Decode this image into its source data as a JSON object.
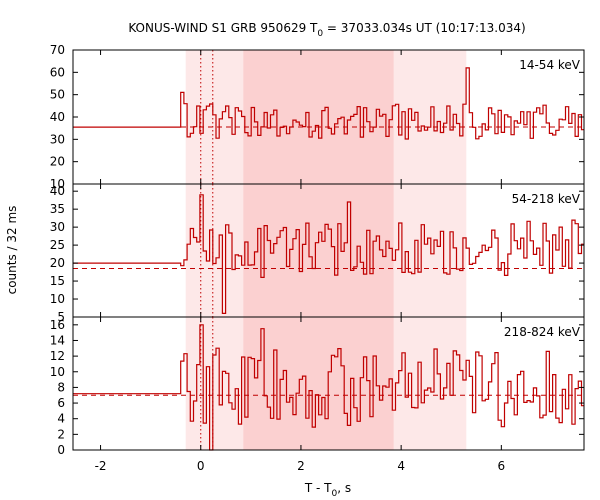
{
  "chart_data": {
    "type": "line",
    "title": {
      "prefix": "KONUS-WIND S1 GRB 950629 T",
      "sub": "0",
      "suffix": " = 37033.034s UT (10:17:13.034)"
    },
    "xlabel": {
      "prefix": "T - T",
      "sub": "0",
      "suffix": ", s"
    },
    "ylabel": "counts / 32 ms",
    "xlim": [
      -2.55,
      7.65
    ],
    "xticks": [
      -2,
      0,
      2,
      4,
      6
    ],
    "shaded_intervals": [
      {
        "range": [
          -0.3,
          5.3
        ],
        "color": "#fde8e8"
      },
      {
        "range": [
          0.85,
          3.85
        ],
        "color": "#fbd0d0"
      }
    ],
    "vertical_markers": [
      0.0,
      0.24
    ],
    "series_color": "#c00000",
    "panels": [
      {
        "label": "14-54 keV",
        "ylim": [
          10,
          70
        ],
        "yticks": [
          10,
          20,
          30,
          40,
          50,
          60,
          70
        ],
        "background_level": 35.5,
        "pre_burst_rate": 35.5,
        "burst_mean": 38,
        "burst_amplitude": 5,
        "spikes": [
          {
            "t": -0.5,
            "v": 45
          },
          {
            "t": -0.38,
            "v": 51
          },
          {
            "t": 0.9,
            "v": 33
          },
          {
            "t": 5.28,
            "v": 62
          }
        ]
      },
      {
        "label": "54-218 keV",
        "ylim": [
          5,
          42
        ],
        "yticks": [
          5,
          10,
          15,
          20,
          25,
          30,
          35,
          40
        ],
        "background_level": 18.5,
        "pre_burst_rate": 20,
        "burst_mean": 24,
        "burst_amplitude": 5,
        "spikes": [
          {
            "t": -0.45,
            "v": 35
          },
          {
            "t": 0.0,
            "v": 39
          },
          {
            "t": 0.45,
            "v": 6
          },
          {
            "t": 2.9,
            "v": 37
          }
        ]
      },
      {
        "label": "218-824 keV",
        "ylim": [
          0,
          17
        ],
        "yticks": [
          0,
          2,
          4,
          6,
          8,
          10,
          12,
          14,
          16
        ],
        "background_level": 7,
        "pre_burst_rate": 7.2,
        "burst_mean": 8,
        "burst_amplitude": 3.2,
        "spikes": [
          {
            "t": -0.45,
            "v": 13
          },
          {
            "t": 0.0,
            "v": 16
          },
          {
            "t": 0.2,
            "v": 0
          },
          {
            "t": 1.2,
            "v": 15.5
          }
        ]
      }
    ]
  }
}
